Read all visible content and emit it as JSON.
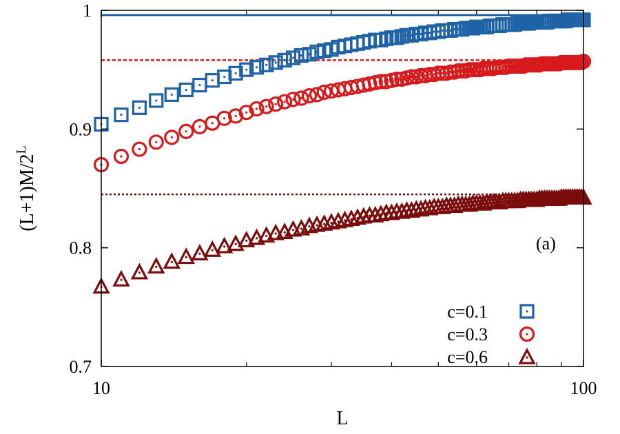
{
  "chart_data": {
    "type": "scatter",
    "title": "",
    "xlabel": "L",
    "ylabel_main": "(L+1)M/2",
    "ylabel_sup": "L",
    "x_scale": "log",
    "xlim": [
      10,
      100
    ],
    "ylim": [
      0.7,
      1.0
    ],
    "x_ticks": [
      10,
      100
    ],
    "x_tick_labels": [
      "10",
      "100"
    ],
    "y_ticks": [
      0.7,
      0.8,
      0.9,
      1.0
    ],
    "y_tick_labels": [
      "0.7",
      "0.8",
      "0.9",
      "1"
    ],
    "annotation": "(a)",
    "grid": false,
    "legend_position": "bottom-right",
    "reference_lines": [
      {
        "y": 0.996,
        "style": "solid",
        "color": "#1f63a6"
      },
      {
        "y": 0.958,
        "style": "dashed",
        "color": "#d7191c"
      },
      {
        "y": 0.845,
        "style": "dotted",
        "color": "#7b0c0c"
      }
    ],
    "series": [
      {
        "name": "c=0.1",
        "marker": "square",
        "color": "#1f63a6",
        "x_start": 10,
        "x_end": 100,
        "values": [
          0.904,
          0.912,
          0.918,
          0.924,
          0.929,
          0.933,
          0.937,
          0.941,
          0.944,
          0.947,
          0.95,
          0.952,
          0.954,
          0.956,
          0.958,
          0.96,
          0.962,
          0.963,
          0.965,
          0.966,
          0.967,
          0.969,
          0.97,
          0.971,
          0.972,
          0.973,
          0.974,
          0.975,
          0.975,
          0.976,
          0.977,
          0.977,
          0.978,
          0.979,
          0.979,
          0.98,
          0.98,
          0.981,
          0.981,
          0.982,
          0.982,
          0.983,
          0.983,
          0.983,
          0.984,
          0.984,
          0.984,
          0.985,
          0.985,
          0.985,
          0.986,
          0.986,
          0.986,
          0.986,
          0.987,
          0.987,
          0.987,
          0.987,
          0.988,
          0.988,
          0.988,
          0.988,
          0.988,
          0.989,
          0.989,
          0.989,
          0.989,
          0.989,
          0.99,
          0.99,
          0.99,
          0.99,
          0.99,
          0.99,
          0.99,
          0.991,
          0.991,
          0.991,
          0.991,
          0.991,
          0.991,
          0.991,
          0.991,
          0.992,
          0.992,
          0.992,
          0.992,
          0.992,
          0.992,
          0.992,
          0.992
        ]
      },
      {
        "name": "c=0.3",
        "marker": "circle",
        "color": "#d7191c",
        "x_start": 10,
        "x_end": 100,
        "values": [
          0.87,
          0.877,
          0.883,
          0.889,
          0.893,
          0.898,
          0.902,
          0.905,
          0.909,
          0.911,
          0.914,
          0.917,
          0.919,
          0.921,
          0.923,
          0.925,
          0.926,
          0.928,
          0.929,
          0.931,
          0.932,
          0.933,
          0.934,
          0.935,
          0.936,
          0.937,
          0.938,
          0.939,
          0.94,
          0.94,
          0.941,
          0.942,
          0.942,
          0.943,
          0.944,
          0.944,
          0.945,
          0.945,
          0.946,
          0.946,
          0.947,
          0.947,
          0.947,
          0.948,
          0.948,
          0.949,
          0.949,
          0.949,
          0.95,
          0.95,
          0.95,
          0.95,
          0.951,
          0.951,
          0.951,
          0.951,
          0.952,
          0.952,
          0.952,
          0.952,
          0.953,
          0.953,
          0.953,
          0.953,
          0.953,
          0.953,
          0.954,
          0.954,
          0.954,
          0.954,
          0.954,
          0.954,
          0.955,
          0.955,
          0.955,
          0.955,
          0.955,
          0.955,
          0.955,
          0.955,
          0.956,
          0.956,
          0.956,
          0.956,
          0.956,
          0.956,
          0.956,
          0.956,
          0.956,
          0.956,
          0.957
        ]
      },
      {
        "name": "c=0.6",
        "marker": "triangle",
        "color": "#7b0c0c",
        "x_start": 10,
        "x_end": 100,
        "values": [
          0.767,
          0.773,
          0.779,
          0.784,
          0.788,
          0.792,
          0.795,
          0.798,
          0.801,
          0.803,
          0.806,
          0.808,
          0.81,
          0.812,
          0.813,
          0.815,
          0.816,
          0.818,
          0.819,
          0.82,
          0.821,
          0.822,
          0.823,
          0.824,
          0.825,
          0.826,
          0.827,
          0.827,
          0.828,
          0.829,
          0.829,
          0.83,
          0.83,
          0.831,
          0.831,
          0.832,
          0.832,
          0.833,
          0.833,
          0.834,
          0.834,
          0.834,
          0.835,
          0.835,
          0.835,
          0.836,
          0.836,
          0.836,
          0.836,
          0.837,
          0.837,
          0.837,
          0.837,
          0.838,
          0.838,
          0.838,
          0.838,
          0.838,
          0.839,
          0.839,
          0.839,
          0.839,
          0.839,
          0.839,
          0.84,
          0.84,
          0.84,
          0.84,
          0.84,
          0.84,
          0.84,
          0.841,
          0.841,
          0.841,
          0.841,
          0.841,
          0.841,
          0.841,
          0.841,
          0.841,
          0.842,
          0.842,
          0.842,
          0.842,
          0.842,
          0.842,
          0.842,
          0.842,
          0.842,
          0.842,
          0.842
        ]
      }
    ]
  }
}
